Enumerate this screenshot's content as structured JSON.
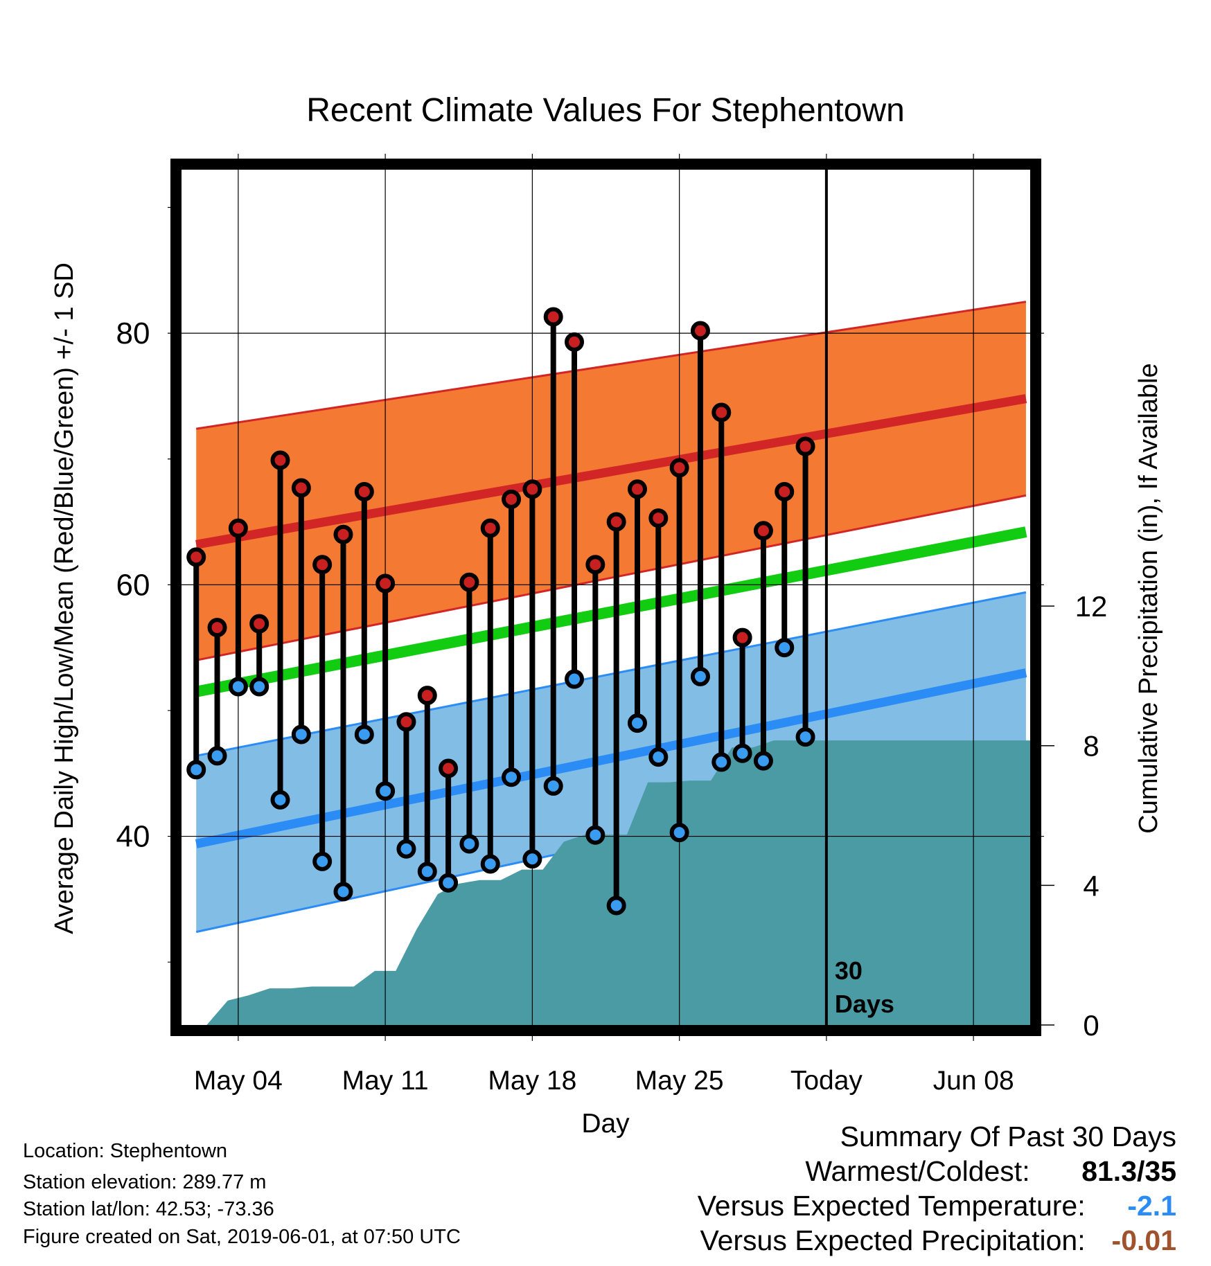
{
  "chart_data": {
    "type": "line",
    "title": "Recent Climate Values For Stephentown",
    "xlabel": "Day",
    "ylabel": "Average Daily High/Low/Mean (Red/Blue/Green) +/- 1 SD",
    "y2label": "Cumulative Precipitation (in), If Available",
    "x_ticks": [
      "May 04",
      "May 11",
      "May 18",
      "May 25",
      "Today",
      "Jun 08"
    ],
    "x_tick_days": [
      3,
      10,
      17,
      24,
      31,
      38
    ],
    "y_ticks": [
      40,
      60,
      80
    ],
    "y2_ticks": [
      0,
      4,
      8,
      12
    ],
    "ylim": [
      25,
      93
    ],
    "y2lim": [
      0,
      24.5
    ],
    "xlim": [
      0.3,
      40.7
    ],
    "grid": true,
    "today_day": 31,
    "today_label": "30\nDays",
    "normals": {
      "days": [
        1,
        40.5
      ],
      "high_mean": [
        63.2,
        74.8
      ],
      "high_sd": [
        9.2,
        7.7
      ],
      "low_mean": [
        39.4,
        53.0
      ],
      "low_sd": [
        7.0,
        6.4
      ],
      "avg_mean": [
        51.5,
        64.2
      ]
    },
    "days": [
      1,
      2,
      3,
      4,
      5,
      6,
      7,
      8,
      9,
      10,
      11,
      12,
      13,
      14,
      15,
      16,
      17,
      18,
      19,
      20,
      21,
      22,
      23,
      24,
      25,
      26,
      27,
      28,
      29,
      30
    ],
    "highs": [
      62.2,
      56.6,
      64.5,
      56.9,
      69.9,
      67.7,
      61.6,
      64.0,
      67.4,
      60.1,
      49.1,
      51.2,
      45.4,
      60.2,
      64.5,
      66.8,
      67.6,
      81.3,
      79.3,
      61.6,
      65.0,
      67.6,
      65.3,
      69.3,
      80.2,
      73.7,
      55.8,
      64.3,
      67.4,
      71.0
    ],
    "lows": [
      45.3,
      46.4,
      51.9,
      51.9,
      42.9,
      48.1,
      38.0,
      35.6,
      48.1,
      43.6,
      39.0,
      37.2,
      36.3,
      39.4,
      37.8,
      44.7,
      38.2,
      44.0,
      52.5,
      40.1,
      34.5,
      49.0,
      46.3,
      40.3,
      52.7,
      45.9,
      46.6,
      46.0,
      55.0,
      47.9
    ],
    "precip_cum": [
      0,
      0,
      0.7,
      0.85,
      1.05,
      1.05,
      1.1,
      1.1,
      1.1,
      1.55,
      1.55,
      2.75,
      3.75,
      4.05,
      4.15,
      4.15,
      4.45,
      4.45,
      5.25,
      5.45,
      5.45,
      5.45,
      6.95,
      6.95,
      7.0,
      7.0,
      7.95,
      7.95,
      8.15,
      8.15,
      8.15,
      8.15,
      8.15,
      8.15,
      8.15,
      8.15,
      8.15,
      8.15,
      8.15,
      8.15,
      8.15
    ],
    "colors": {
      "high_band": "#f47a33",
      "high_line": "#d22626",
      "low_band": "#82bde6",
      "low_line": "#2b8cf5",
      "mean_line": "#12cc12",
      "precip": "#4a9ba3",
      "high_marker": "#c82020",
      "low_marker": "#3a9cf0"
    }
  },
  "footer": {
    "location": "Location: Stephentown",
    "elevation": "Station elevation: 289.77 m",
    "latlon": "Station lat/lon: 42.53; -73.36",
    "created": "Figure created on Sat, 2019-06-01, at 07:50 UTC"
  },
  "summary": {
    "title": "Summary Of Past 30 Days",
    "warm_cold_label": "Warmest/Coldest:",
    "warm_cold_value": "81.3/35",
    "temp_label": "Versus Expected Temperature:",
    "temp_value": "-2.1",
    "temp_color": "#2b8cf5",
    "precip_label": "Versus Expected Precipitation:",
    "precip_value": "-0.01",
    "precip_color": "#a0522d"
  }
}
